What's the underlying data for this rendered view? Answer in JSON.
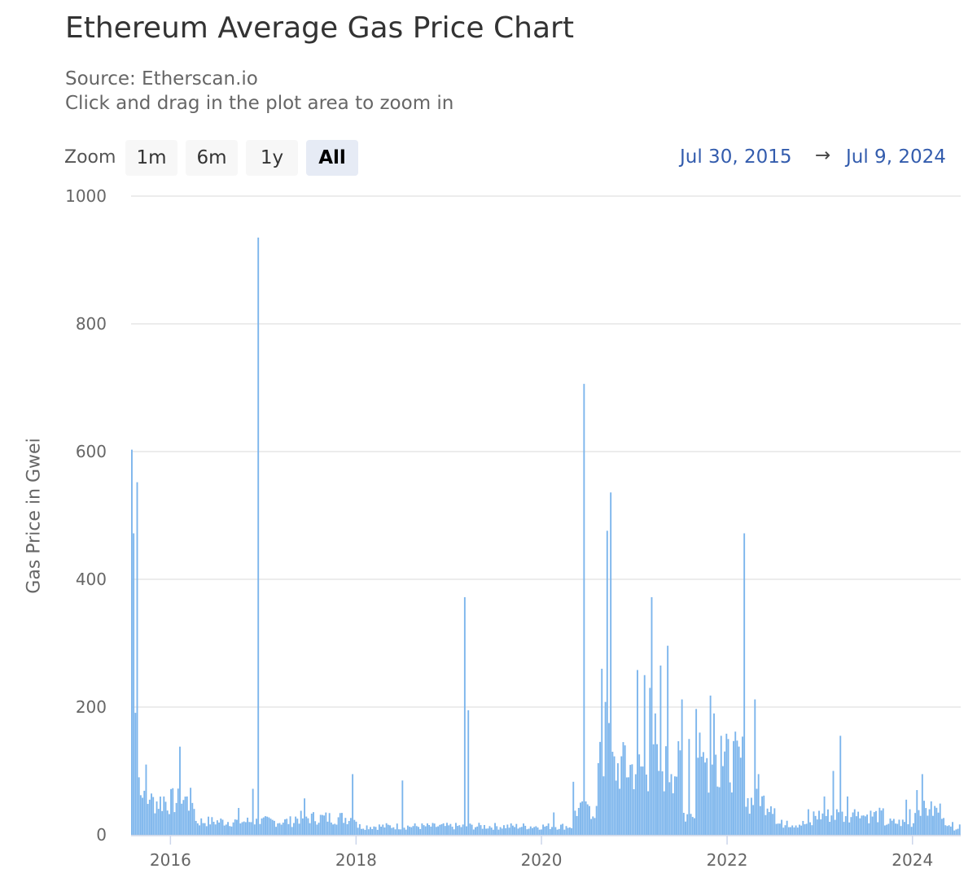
{
  "title": "Ethereum Average Gas Price Chart",
  "subtitle_lines": [
    "Source: Etherscan.io",
    "Click and drag in the plot area to zoom in"
  ],
  "zoom": {
    "label": "Zoom",
    "buttons": [
      "1m",
      "6m",
      "1y",
      "All"
    ],
    "active": "All"
  },
  "range": {
    "from": "Jul 30, 2015",
    "arrow": "→",
    "to": "Jul 9, 2024"
  },
  "colors": {
    "bar": "#7cb5ec",
    "grid": "#e6e6e6",
    "range_text": "#335cad"
  },
  "chart_data": {
    "type": "bar",
    "title": "Ethereum Average Gas Price Chart",
    "ylabel": "Gas Price in Gwei",
    "xlabel": "",
    "ylim": [
      0,
      1000
    ],
    "yticks": [
      0,
      200,
      400,
      600,
      800,
      1000
    ],
    "xlim": [
      "2015-07-30",
      "2024-07-09"
    ],
    "xticks": [
      "2016",
      "2018",
      "2020",
      "2022",
      "2024"
    ],
    "grid": true,
    "bar_interval": "weekly",
    "series": [
      {
        "x": [
          "2015-08-01",
          "2015-08-08",
          "2015-08-15",
          "2015-08-22",
          "2015-08-29",
          "2015-09-05",
          "2015-09-12",
          "2015-09-26",
          "2015-10-10",
          "2015-12-05",
          "2016-02-06",
          "2016-03-05",
          "2016-09-25",
          "2016-11-19",
          "2016-12-10",
          "2017-06-10",
          "2017-12-15",
          "2018-07-01",
          "2019-03-02",
          "2019-03-16",
          "2020-02-15",
          "2020-05-01",
          "2020-06-10",
          "2020-07-01",
          "2020-08-08",
          "2020-08-16",
          "2020-08-22",
          "2020-09-05",
          "2020-09-12",
          "2020-09-19",
          "2020-09-26",
          "2020-10-10",
          "2020-11-20",
          "2020-12-05",
          "2021-01-09",
          "2021-02-06",
          "2021-02-27",
          "2021-03-06",
          "2021-03-20",
          "2021-04-10",
          "2021-05-08",
          "2021-05-22",
          "2021-07-03",
          "2021-08-01",
          "2021-08-28",
          "2021-09-11",
          "2021-10-09",
          "2021-10-23",
          "2021-11-06",
          "2021-12-04",
          "2022-01-01",
          "2022-01-22",
          "2022-03-05",
          "2022-04-16",
          "2022-05-01",
          "2022-05-08",
          "2022-06-11",
          "2022-08-20",
          "2022-11-12",
          "2023-01-14",
          "2023-02-18",
          "2023-03-04",
          "2023-03-18",
          "2023-04-15",
          "2023-05-06",
          "2023-05-13",
          "2023-06-10",
          "2023-09-02",
          "2023-12-02",
          "2023-12-16",
          "2024-01-13",
          "2024-02-03",
          "2024-03-02",
          "2024-03-09",
          "2024-04-06",
          "2024-05-04",
          "2024-06-01",
          "2024-07-06"
        ],
        "values": [
          603,
          472,
          191,
          552,
          90,
          62,
          58,
          110,
          55,
          60,
          138,
          60,
          42,
          72,
          935,
          57,
          95,
          85,
          372,
          195,
          35,
          83,
          706,
          45,
          92,
          130,
          260,
          208,
          476,
          175,
          536,
          80,
          140,
          80,
          258,
          250,
          230,
          372,
          190,
          265,
          296,
          95,
          212,
          150,
          197,
          160,
          120,
          218,
          190,
          155,
          80,
          95,
          472,
          212,
          95,
          45,
          30,
          22,
          40,
          60,
          100,
          40,
          155,
          60,
          35,
          40,
          30,
          22,
          55,
          40,
          70,
          95,
          40,
          50,
          25,
          15,
          20,
          12
        ]
      }
    ]
  }
}
